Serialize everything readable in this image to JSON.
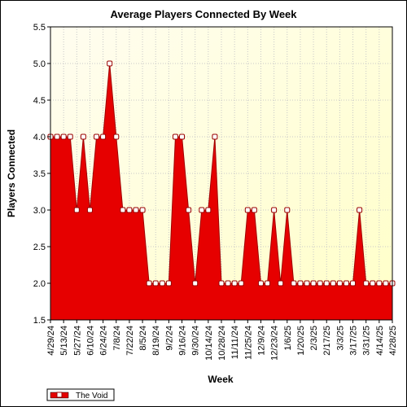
{
  "chart_data": {
    "type": "area",
    "title": "Average Players Connected By Week",
    "xlabel": "Week",
    "ylabel": "Players Connected",
    "ylim": [
      1.5,
      5.5
    ],
    "yticks": [
      "1.5",
      "2.0",
      "2.5",
      "3.0",
      "3.5",
      "4.0",
      "4.5",
      "5.0",
      "5.5"
    ],
    "x": [
      "4/29/24",
      "5/6/24",
      "5/13/24",
      "5/20/24",
      "5/27/24",
      "6/3/24",
      "6/10/24",
      "6/17/24",
      "6/24/24",
      "7/1/24",
      "7/8/24",
      "7/15/24",
      "7/22/24",
      "7/29/24",
      "8/5/24",
      "8/12/24",
      "8/19/24",
      "8/26/24",
      "9/2/24",
      "9/9/24",
      "9/16/24",
      "9/23/24",
      "9/30/24",
      "10/7/24",
      "10/14/24",
      "10/21/24",
      "10/28/24",
      "11/4/24",
      "11/11/24",
      "11/18/24",
      "11/25/24",
      "12/2/24",
      "12/9/24",
      "12/16/24",
      "12/23/24",
      "12/30/24",
      "1/6/25",
      "1/13/25",
      "1/20/25",
      "1/27/25",
      "2/3/25",
      "2/10/25",
      "2/17/25",
      "2/24/25",
      "3/3/25",
      "3/10/25",
      "3/17/25",
      "3/24/25",
      "3/31/25",
      "4/7/25",
      "4/14/25",
      "4/21/25",
      "4/28/25"
    ],
    "xticks": [
      "4/29/24",
      "5/13/24",
      "5/27/24",
      "6/10/24",
      "6/24/24",
      "7/8/24",
      "7/22/24",
      "8/5/24",
      "8/19/24",
      "9/2/24",
      "9/16/24",
      "9/30/24",
      "10/14/24",
      "10/28/24",
      "11/11/24",
      "11/25/24",
      "12/9/24",
      "12/23/24",
      "1/6/25",
      "1/20/25",
      "2/3/25",
      "2/17/25",
      "3/3/25",
      "3/17/25",
      "3/31/25",
      "4/14/25",
      "4/28/25"
    ],
    "series": [
      {
        "name": "The Void",
        "values": [
          4,
          4,
          4,
          4,
          3,
          4,
          3,
          4,
          4,
          5,
          4,
          3,
          3,
          3,
          3,
          2,
          2,
          2,
          2,
          4,
          4,
          3,
          2,
          3,
          3,
          4,
          2,
          2,
          2,
          2,
          3,
          3,
          2,
          2,
          3,
          2,
          3,
          2,
          2,
          2,
          2,
          2,
          2,
          2,
          2,
          2,
          2,
          3,
          2,
          2,
          2,
          2,
          2
        ],
        "color": "#e60000"
      }
    ],
    "grid": true,
    "legend": "bottom-left",
    "background_top": "#fffde8",
    "background_bottom": "#ffffcc"
  }
}
